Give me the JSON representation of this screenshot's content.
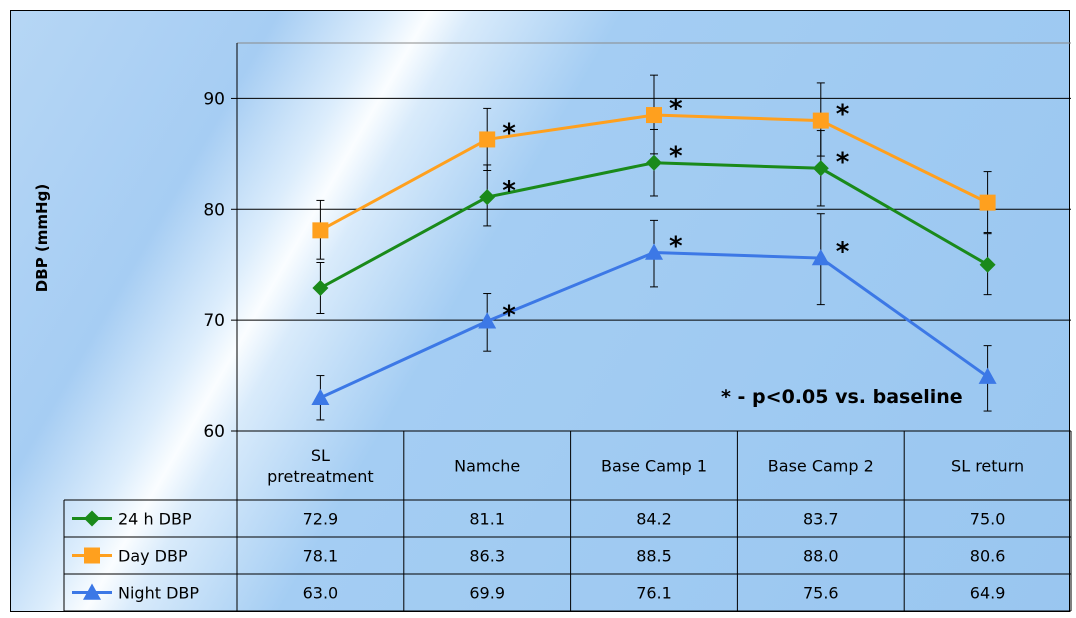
{
  "chart_data": {
    "type": "line",
    "ylabel": "DBP (mmHg)",
    "ylim": [
      60,
      95
    ],
    "yticks": [
      60,
      70,
      80,
      90
    ],
    "grid": true,
    "legend": "data table, left",
    "categories": [
      [
        "SL",
        "pretreatment"
      ],
      [
        "Namche"
      ],
      [
        "Base Camp 1"
      ],
      [
        "Base Camp 2"
      ],
      [
        "SL return"
      ]
    ],
    "series": [
      {
        "name": "24 h DBP",
        "color": "#1a8a1a",
        "marker": "diamond",
        "values": [
          72.9,
          81.1,
          84.2,
          83.7,
          75.0
        ],
        "error_bars": [
          [
            70.6,
            75.2
          ],
          [
            78.5,
            84.0
          ],
          [
            81.2,
            87.2
          ],
          [
            80.3,
            87.1
          ],
          [
            72.3,
            77.8
          ]
        ],
        "significant": [
          false,
          true,
          true,
          true,
          false
        ]
      },
      {
        "name": "Day DBP",
        "color": "#ffa01e",
        "marker": "square",
        "values": [
          78.1,
          86.3,
          88.5,
          88.0,
          80.6
        ],
        "error_bars": [
          [
            75.5,
            80.8
          ],
          [
            83.5,
            89.1
          ],
          [
            85.0,
            92.1
          ],
          [
            84.8,
            91.4
          ],
          [
            77.9,
            83.4
          ]
        ],
        "significant": [
          false,
          true,
          true,
          true,
          false
        ]
      },
      {
        "name": "Night DBP",
        "color": "#3c78e6",
        "marker": "triangle",
        "values": [
          63.0,
          69.9,
          76.1,
          75.6,
          64.9
        ],
        "error_bars": [
          [
            61.0,
            65.0
          ],
          [
            67.2,
            72.4
          ],
          [
            73.0,
            79.0
          ],
          [
            71.4,
            79.6
          ],
          [
            61.8,
            67.7
          ]
        ],
        "significant": [
          false,
          true,
          true,
          true,
          false
        ]
      }
    ],
    "table_values": [
      [
        "72.9",
        "81.1",
        "84.2",
        "83.7",
        "75.0"
      ],
      [
        "78.1",
        "86.3",
        "88.5",
        "88.0",
        "80.6"
      ],
      [
        "63.0",
        "69.9",
        "76.1",
        "75.6",
        "64.9"
      ]
    ],
    "significance_marker": "*",
    "annotation": "* - p<0.05 vs. baseline"
  }
}
